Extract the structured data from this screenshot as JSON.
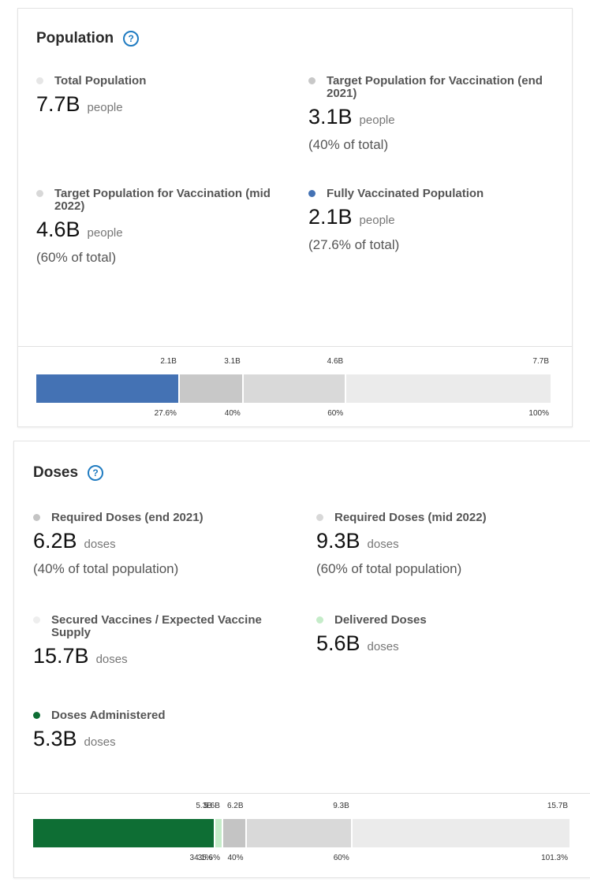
{
  "population": {
    "title": "Population",
    "help_icon": "question-circle-icon",
    "stats": [
      {
        "label": "Total Population",
        "value": "7.7B",
        "unit": "people",
        "sub": "",
        "color": "#e6e6e6"
      },
      {
        "label": "Target Population for Vaccination (end 2021)",
        "value": "3.1B",
        "unit": "people",
        "sub": "(40% of total)",
        "color": "#c8c8c8"
      },
      {
        "label": "Target Population for Vaccination (mid 2022)",
        "value": "4.6B",
        "unit": "people",
        "sub": "(60% of total)",
        "color": "#d8d8d8"
      },
      {
        "label": "Fully Vaccinated Population",
        "value": "2.1B",
        "unit": "people",
        "sub": "(27.6% of total)",
        "color": "#4472b4"
      }
    ],
    "bar": {
      "top_labels": [
        "2.1B",
        "3.1B",
        "4.6B",
        "7.7B"
      ],
      "bottom_labels": [
        "27.6%",
        "40%",
        "60%",
        "100%"
      ],
      "percents": [
        27.6,
        40,
        60,
        100
      ],
      "colors": [
        "#4472b4",
        "#c8c8c8",
        "#d9d9d9",
        "#ebebeb"
      ]
    }
  },
  "doses": {
    "title": "Doses",
    "help_icon": "question-circle-icon",
    "stats": [
      {
        "label": "Required Doses (end 2021)",
        "value": "6.2B",
        "unit": "doses",
        "sub": "(40% of total population)",
        "color": "#c4c4c4"
      },
      {
        "label": "Required Doses (mid 2022)",
        "value": "9.3B",
        "unit": "doses",
        "sub": "(60% of total population)",
        "color": "#d8d8d8"
      },
      {
        "label": "Secured Vaccines / Expected Vaccine Supply",
        "value": "15.7B",
        "unit": "doses",
        "sub": "",
        "color": "#eeeeee"
      },
      {
        "label": "Delivered Doses",
        "value": "5.6B",
        "unit": "doses",
        "sub": "",
        "color": "#c5ecc9"
      },
      {
        "label": "Doses Administered",
        "value": "5.3B",
        "unit": "doses",
        "sub": "",
        "color": "#0e6e34"
      }
    ],
    "bar": {
      "top_labels": [
        "5.3B",
        "5.6B",
        "6.2B",
        "9.3B",
        "15.7B"
      ],
      "bottom_labels": [
        "34.1%",
        "35.6%",
        "40%",
        "60%",
        "101.3%"
      ],
      "percents": [
        34.1,
        35.6,
        40,
        60,
        101.3
      ],
      "colors": [
        "#0e6e34",
        "#c5ecc9",
        "#c4c4c4",
        "#d9d9d9",
        "#ebebeb"
      ]
    }
  }
}
